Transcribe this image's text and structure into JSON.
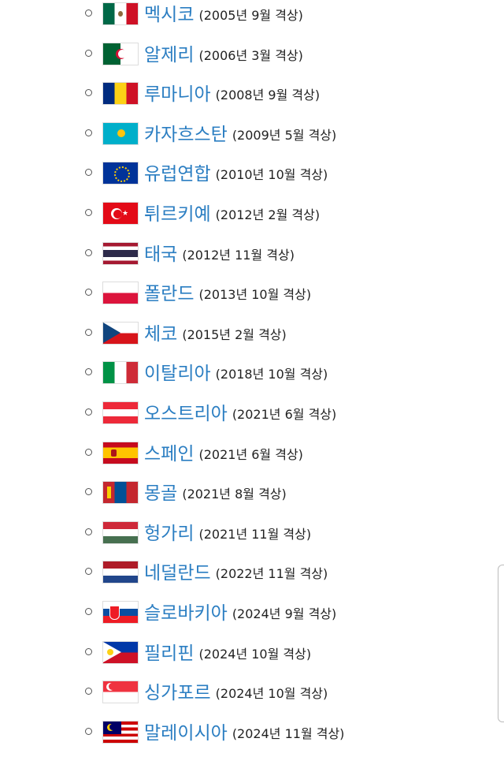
{
  "items": [
    {
      "name": "멕시코",
      "date": "(2005년 9월 격상)",
      "flag": "mexico"
    },
    {
      "name": "알제리",
      "date": "(2006년 3월 격상)",
      "flag": "algeria"
    },
    {
      "name": "루마니아",
      "date": "(2008년 9월 격상)",
      "flag": "romania"
    },
    {
      "name": "카자흐스탄",
      "date": "(2009년 5월 격상)",
      "flag": "kazakhstan"
    },
    {
      "name": "유럽연합",
      "date": "(2010년 10월 격상)",
      "flag": "eu"
    },
    {
      "name": "튀르키예",
      "date": "(2012년 2월 격상)",
      "flag": "turkey"
    },
    {
      "name": "태국",
      "date": "(2012년 11월 격상)",
      "flag": "thailand"
    },
    {
      "name": "폴란드",
      "date": "(2013년 10월 격상)",
      "flag": "poland"
    },
    {
      "name": "체코",
      "date": "(2015년 2월 격상)",
      "flag": "czech"
    },
    {
      "name": "이탈리아",
      "date": "(2018년 10월 격상)",
      "flag": "italy"
    },
    {
      "name": "오스트리아",
      "date": "(2021년 6월 격상)",
      "flag": "austria"
    },
    {
      "name": "스페인",
      "date": "(2021년 6월 격상)",
      "flag": "spain"
    },
    {
      "name": "몽골",
      "date": "(2021년 8월 격상)",
      "flag": "mongolia"
    },
    {
      "name": "헝가리",
      "date": "(2021년 11월 격상)",
      "flag": "hungary"
    },
    {
      "name": "네덜란드",
      "date": "(2022년 11월 격상)",
      "flag": "netherlands"
    },
    {
      "name": "슬로바키아",
      "date": "(2024년 9월 격상)",
      "flag": "slovakia"
    },
    {
      "name": "필리핀",
      "date": "(2024년 10월 격상)",
      "flag": "philippines"
    },
    {
      "name": "싱가포르",
      "date": "(2024년 10월 격상)",
      "flag": "singapore"
    },
    {
      "name": "말레이시아",
      "date": "(2024년 11월 격상)",
      "flag": "malaysia"
    }
  ],
  "colors": {
    "link": "#2b7ec2",
    "text": "#222222"
  }
}
